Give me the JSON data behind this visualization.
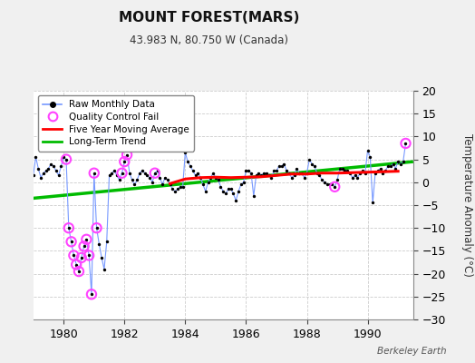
{
  "title": "MOUNT FOREST(MARS)",
  "subtitle": "43.983 N, 80.750 W (Canada)",
  "ylabel": "Temperature Anomaly (°C)",
  "watermark": "Berkeley Earth",
  "xlim": [
    1979.0,
    1991.5
  ],
  "ylim": [
    -30,
    20
  ],
  "yticks": [
    -30,
    -25,
    -20,
    -15,
    -10,
    -5,
    0,
    5,
    10,
    15,
    20
  ],
  "xticks": [
    1980,
    1982,
    1984,
    1986,
    1988,
    1990
  ],
  "bg_color": "#f0f0f0",
  "plot_bg_color": "#ffffff",
  "grid_color": "#cccccc",
  "raw_line_color": "#7799ff",
  "raw_dot_color": "#000000",
  "qc_color": "#ff44ff",
  "moving_avg_color": "#ff0000",
  "trend_color": "#00bb00",
  "legend_items": [
    "Raw Monthly Data",
    "Quality Control Fail",
    "Five Year Moving Average",
    "Long-Term Trend"
  ],
  "raw_x": [
    1979.0,
    1979.083,
    1979.167,
    1979.25,
    1979.333,
    1979.417,
    1979.5,
    1979.583,
    1979.667,
    1979.75,
    1979.833,
    1979.917,
    1980.0,
    1980.083,
    1980.167,
    1980.25,
    1980.333,
    1980.417,
    1980.5,
    1980.583,
    1980.667,
    1980.75,
    1980.833,
    1980.917,
    1981.0,
    1981.083,
    1981.167,
    1981.25,
    1981.333,
    1981.417,
    1981.5,
    1981.583,
    1981.667,
    1981.75,
    1981.833,
    1981.917,
    1982.0,
    1982.083,
    1982.167,
    1982.25,
    1982.333,
    1982.417,
    1982.5,
    1982.583,
    1982.667,
    1982.75,
    1982.833,
    1982.917,
    1983.0,
    1983.083,
    1983.167,
    1983.25,
    1983.333,
    1983.417,
    1983.5,
    1983.583,
    1983.667,
    1983.75,
    1983.833,
    1983.917,
    1984.0,
    1984.083,
    1984.167,
    1984.25,
    1984.333,
    1984.417,
    1984.5,
    1984.583,
    1984.667,
    1984.75,
    1984.833,
    1984.917,
    1985.0,
    1985.083,
    1985.167,
    1985.25,
    1985.333,
    1985.417,
    1985.5,
    1985.583,
    1985.667,
    1985.75,
    1985.833,
    1985.917,
    1986.0,
    1986.083,
    1986.167,
    1986.25,
    1986.333,
    1986.417,
    1986.5,
    1986.583,
    1986.667,
    1986.75,
    1986.833,
    1986.917,
    1987.0,
    1987.083,
    1987.167,
    1987.25,
    1987.333,
    1987.417,
    1987.5,
    1987.583,
    1987.667,
    1987.75,
    1987.833,
    1987.917,
    1988.0,
    1988.083,
    1988.167,
    1988.25,
    1988.333,
    1988.417,
    1988.5,
    1988.583,
    1988.667,
    1988.75,
    1988.833,
    1988.917,
    1989.0,
    1989.083,
    1989.167,
    1989.25,
    1989.333,
    1989.417,
    1989.5,
    1989.583,
    1989.667,
    1989.75,
    1989.833,
    1989.917,
    1990.0,
    1990.083,
    1990.167,
    1990.25,
    1990.333,
    1990.417,
    1990.5,
    1990.583,
    1990.667,
    1990.75,
    1990.833,
    1990.917,
    1991.0,
    1991.083,
    1991.167,
    1991.25
  ],
  "raw_y": [
    1.5,
    5.5,
    3.0,
    1.0,
    2.0,
    2.5,
    3.0,
    4.0,
    3.5,
    2.5,
    1.5,
    3.5,
    5.5,
    5.0,
    -10.0,
    -13.0,
    -16.0,
    -18.0,
    -19.5,
    -16.5,
    -14.0,
    -12.5,
    -16.0,
    -24.5,
    2.0,
    -10.0,
    -13.5,
    -16.5,
    -19.0,
    -13.0,
    1.5,
    2.0,
    2.5,
    1.5,
    0.5,
    2.0,
    4.5,
    6.0,
    2.0,
    0.5,
    -0.5,
    0.5,
    2.0,
    2.5,
    2.0,
    1.5,
    1.0,
    0.0,
    2.0,
    2.5,
    1.0,
    -0.5,
    1.0,
    0.5,
    -0.5,
    -1.5,
    -2.0,
    -1.5,
    -1.0,
    -1.0,
    6.5,
    4.5,
    3.5,
    2.5,
    1.5,
    2.0,
    1.0,
    -0.5,
    -2.0,
    0.0,
    1.0,
    2.0,
    1.0,
    0.5,
    -1.0,
    -2.0,
    -2.5,
    -1.5,
    -1.5,
    -2.5,
    -4.0,
    -2.0,
    -0.5,
    0.0,
    2.5,
    2.5,
    2.0,
    -3.0,
    1.5,
    2.0,
    1.5,
    2.0,
    2.0,
    1.5,
    1.0,
    2.5,
    2.5,
    3.5,
    3.5,
    4.0,
    2.5,
    2.0,
    1.0,
    1.5,
    3.0,
    2.0,
    2.0,
    1.0,
    2.0,
    5.0,
    4.0,
    3.5,
    2.0,
    1.5,
    0.5,
    0.0,
    -0.5,
    -0.5,
    -0.5,
    -1.0,
    0.5,
    3.0,
    3.0,
    2.5,
    2.5,
    2.0,
    1.0,
    1.5,
    1.0,
    2.0,
    2.5,
    2.0,
    7.0,
    5.5,
    -4.5,
    2.0,
    2.5,
    3.0,
    2.0,
    2.5,
    3.5,
    3.5,
    4.0,
    3.0,
    4.5,
    4.0,
    4.5,
    8.5
  ],
  "qc_x": [
    1980.083,
    1980.167,
    1980.25,
    1980.333,
    1980.417,
    1980.5,
    1980.583,
    1980.667,
    1980.75,
    1980.833,
    1980.917,
    1981.0,
    1981.083,
    1981.917,
    1982.0,
    1982.083,
    1983.0,
    1988.917,
    1991.25
  ],
  "qc_y": [
    5.0,
    -10.0,
    -13.0,
    -16.0,
    -18.0,
    -19.5,
    -16.5,
    -14.0,
    -12.5,
    -16.0,
    -24.5,
    2.0,
    -10.0,
    2.0,
    4.5,
    6.0,
    2.0,
    -1.0,
    8.5
  ],
  "ma_x": [
    1983.5,
    1984.0,
    1984.5,
    1985.0,
    1985.5,
    1986.0,
    1986.5,
    1987.0,
    1987.5,
    1988.0,
    1988.5,
    1989.0,
    1989.5,
    1990.0,
    1990.5,
    1991.0
  ],
  "ma_y": [
    -0.3,
    0.7,
    1.0,
    1.1,
    1.0,
    1.1,
    1.2,
    1.5,
    1.8,
    1.8,
    2.0,
    2.0,
    2.1,
    2.2,
    2.3,
    2.4
  ],
  "trend_x": [
    1979.0,
    1991.5
  ],
  "trend_y": [
    -3.5,
    4.5
  ]
}
